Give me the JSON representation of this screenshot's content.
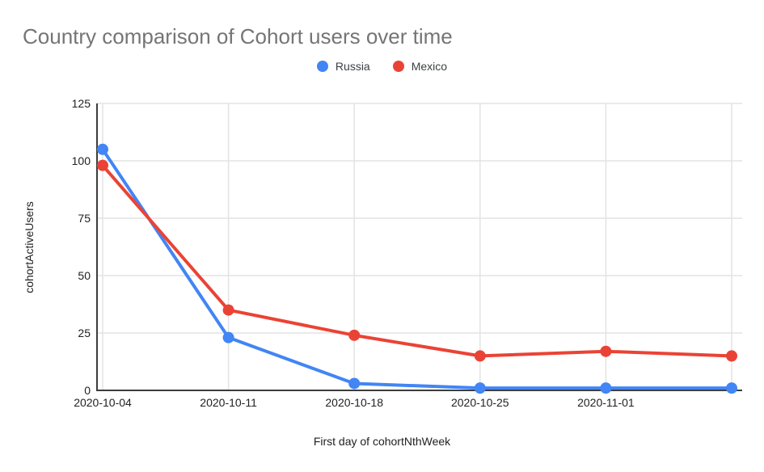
{
  "page": {
    "background": "#ffffff"
  },
  "chart_data": {
    "type": "line",
    "title": "Country comparison of Cohort users over time",
    "xlabel": "First day of cohortNthWeek",
    "ylabel": "cohortActiveUsers",
    "x_tick_labels": [
      "2020-10-04",
      "2020-10-11",
      "2020-10-18",
      "2020-10-25",
      "2020-11-01"
    ],
    "num_points": 6,
    "series": [
      {
        "name": "Russia",
        "color": "#4285F4",
        "values": [
          105,
          23,
          3,
          1,
          1,
          1
        ]
      },
      {
        "name": "Mexico",
        "color": "#EA4335",
        "values": [
          98,
          35,
          24,
          15,
          17,
          15
        ]
      }
    ],
    "y_ticks": [
      0,
      25,
      50,
      75,
      100,
      125
    ],
    "ylim": [
      0,
      125
    ],
    "grid": true,
    "legend_position": "top",
    "style": {
      "title_color": "#757575",
      "axis_text_color": "#202124",
      "legend_text_color": "#3c4043",
      "grid_color": "#e3e3e3",
      "axis_line_color": "#3c3c3c",
      "line_width": 4,
      "point_radius": 7
    }
  }
}
